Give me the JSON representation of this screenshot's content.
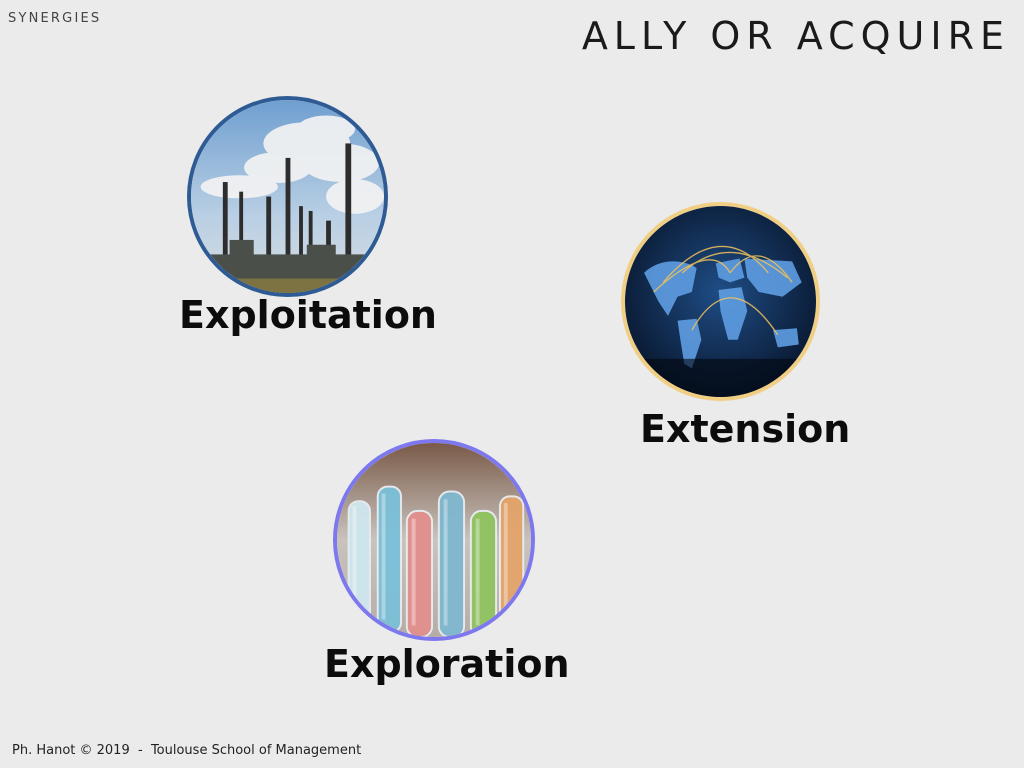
{
  "header": {
    "section_label": "SYNERGIES",
    "title": "ALLY OR ACQUIRE"
  },
  "concepts": [
    {
      "label": "Exploitation",
      "image": "factory-smokestacks-photo",
      "border_color": "#2e5b94"
    },
    {
      "label": "Extension",
      "image": "world-map-network-photo",
      "border_color": "#f0cf85"
    },
    {
      "label": "Exploration",
      "image": "test-tubes-photo",
      "border_color": "#7d78ee"
    }
  ],
  "footer": {
    "text": "Ph. Hanot © 2019  -  Toulouse School of Management"
  }
}
